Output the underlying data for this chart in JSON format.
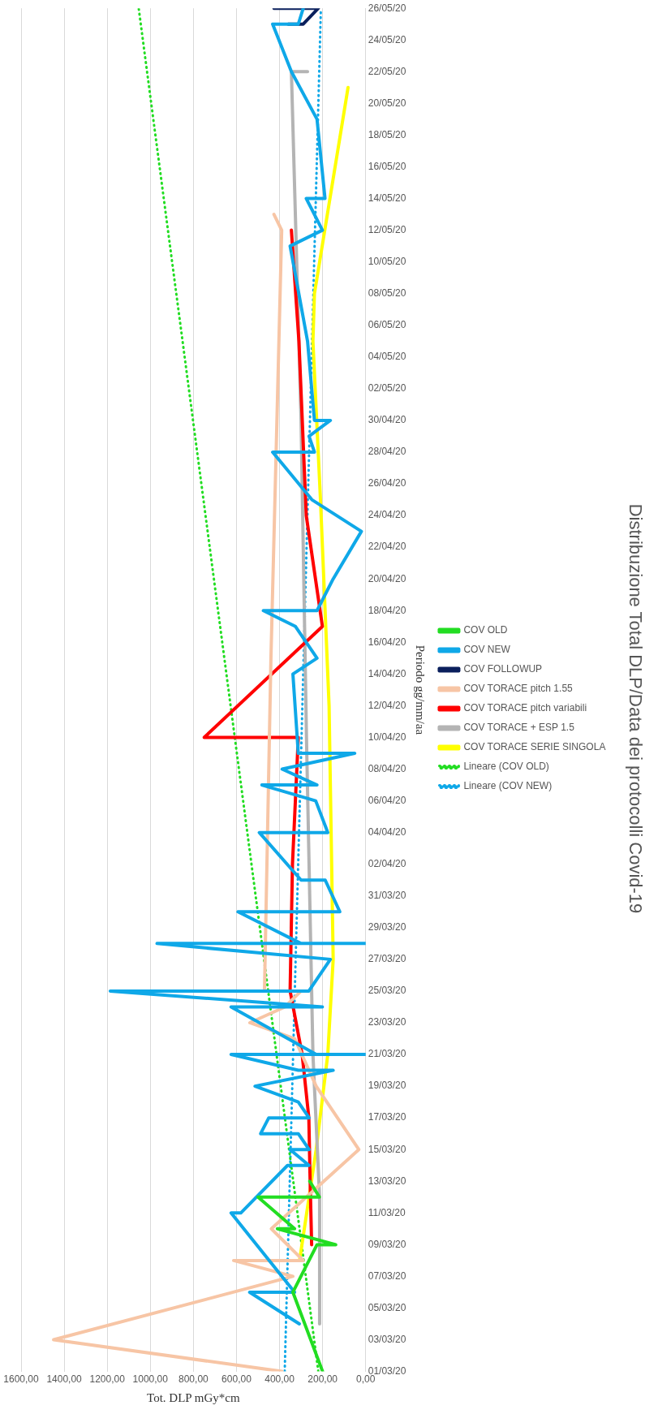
{
  "chart_data": {
    "type": "line",
    "orientation": "horizontal",
    "title": "Distribuzione Total DLP/Data dei protocolli Covid-19",
    "ylabel": "Periodo gg/mm/aa",
    "xlabel": "Tot. DLP mGy*cm",
    "legend": "right",
    "grid": "x",
    "marker": "none",
    "ylim": [
      "--03-01",
      "--05-26"
    ],
    "yticks": [
      {
        "value": "--03-01",
        "label": "01/03/20"
      },
      {
        "value": "--03-03",
        "label": "03/03/20"
      },
      {
        "value": "--03-05",
        "label": "05/03/20"
      },
      {
        "value": "--03-07",
        "label": "07/03/20"
      },
      {
        "value": "--03-09",
        "label": "09/03/20"
      },
      {
        "value": "--03-11",
        "label": "11/03/20"
      },
      {
        "value": "--03-13",
        "label": "13/03/20"
      },
      {
        "value": "--03-15",
        "label": "15/03/20"
      },
      {
        "value": "--03-17",
        "label": "17/03/20"
      },
      {
        "value": "--03-19",
        "label": "19/03/20"
      },
      {
        "value": "--03-21",
        "label": "21/03/20"
      },
      {
        "value": "--03-23",
        "label": "23/03/20"
      },
      {
        "value": "--03-25",
        "label": "25/03/20"
      },
      {
        "value": "--03-27",
        "label": "27/03/20"
      },
      {
        "value": "--03-29",
        "label": "29/03/20"
      },
      {
        "value": "--03-31",
        "label": "31/03/20"
      },
      {
        "value": "--04-02",
        "label": "02/04/20"
      },
      {
        "value": "--04-04",
        "label": "04/04/20"
      },
      {
        "value": "--04-06",
        "label": "06/04/20"
      },
      {
        "value": "--04-08",
        "label": "08/04/20"
      },
      {
        "value": "--04-10",
        "label": "10/04/20"
      },
      {
        "value": "--04-12",
        "label": "12/04/20"
      },
      {
        "value": "--04-14",
        "label": "14/04/20"
      },
      {
        "value": "--04-16",
        "label": "16/04/20"
      },
      {
        "value": "--04-18",
        "label": "18/04/20"
      },
      {
        "value": "--04-20",
        "label": "20/04/20"
      },
      {
        "value": "--04-22",
        "label": "22/04/20"
      },
      {
        "value": "--04-24",
        "label": "24/04/20"
      },
      {
        "value": "--04-26",
        "label": "26/04/20"
      },
      {
        "value": "--04-28",
        "label": "28/04/20"
      },
      {
        "value": "--04-30",
        "label": "30/04/20"
      },
      {
        "value": "--05-02",
        "label": "02/05/20"
      },
      {
        "value": "--05-04",
        "label": "04/05/20"
      },
      {
        "value": "--05-06",
        "label": "06/05/20"
      },
      {
        "value": "--05-08",
        "label": "08/05/20"
      },
      {
        "value": "--05-10",
        "label": "10/05/20"
      },
      {
        "value": "--05-12",
        "label": "12/05/20"
      },
      {
        "value": "--05-14",
        "label": "14/05/20"
      },
      {
        "value": "--05-16",
        "label": "16/05/20"
      },
      {
        "value": "--05-18",
        "label": "18/05/20"
      },
      {
        "value": "--05-20",
        "label": "20/05/20"
      },
      {
        "value": "--05-22",
        "label": "22/05/20"
      },
      {
        "value": "--05-24",
        "label": "24/05/20"
      },
      {
        "value": "--05-26",
        "label": "26/05/20"
      }
    ],
    "xlim": [
      1600,
      0
    ],
    "xticks": [
      {
        "value": 0,
        "label": "0,00"
      },
      {
        "value": 200,
        "label": "200,00"
      },
      {
        "value": 400,
        "label": "400,00"
      },
      {
        "value": 600,
        "label": "600,00"
      },
      {
        "value": 800,
        "label": "800,00"
      },
      {
        "value": 1000,
        "label": "1000,00"
      },
      {
        "value": 1200,
        "label": "1200,00"
      },
      {
        "value": 1400,
        "label": "1400,00"
      },
      {
        "value": 1600,
        "label": "1600,00"
      }
    ],
    "series": [
      {
        "name": "COV OLD",
        "color": "#22dd22",
        "line_style": "solid",
        "x": [
          "--03-01",
          "--03-06",
          "--03-09",
          "--03-09",
          "--03-10",
          "--03-10",
          "--03-12",
          "--03-12",
          "--03-13"
        ],
        "values": [
          200,
          338,
          226,
          139,
          410,
          330,
          500,
          215,
          260
        ]
      },
      {
        "name": "COV NEW",
        "color": "#0fa8e8",
        "line_style": "solid",
        "x": [
          "--03-04",
          "--03-06",
          "--03-06",
          "--03-11",
          "--03-11",
          "--03-14",
          "--03-14",
          "--03-15",
          "--03-15",
          "--03-16",
          "--03-16",
          "--03-17",
          "--03-17",
          "--03-18",
          "--03-19",
          "--03-20",
          "--03-20",
          "--03-21",
          "--03-21",
          "--03-21",
          "--03-24",
          "--03-24",
          "--03-25",
          "--03-25",
          "--03-27",
          "--03-28",
          "--03-28",
          "--03-28",
          "--03-30",
          "--03-30",
          "--04-01",
          "--04-01",
          "--04-04",
          "--04-04",
          "--04-06",
          "--04-07",
          "--04-07",
          "--04-08",
          "--04-09",
          "--04-09",
          "--04-14",
          "--04-15",
          "--04-17",
          "--04-18",
          "--04-18",
          "--04-20",
          "--04-23",
          "--04-25",
          "--04-28",
          "--04-28",
          "--04-29",
          "--04-30",
          "--04-30",
          "--05-05",
          "--05-11",
          "--05-12",
          "--05-14",
          "--05-14",
          "--05-19",
          "--05-22",
          "--05-25",
          "--05-25",
          "--05-26"
        ],
        "values": [
          308,
          539,
          330,
          625,
          580,
          363,
          263,
          351,
          263,
          313,
          488,
          450,
          263,
          313,
          514,
          151,
          313,
          625,
          1,
          230,
          625,
          201,
          1186,
          264,
          164,
          969,
          1,
          300,
          593,
          120,
          188,
          300,
          494,
          176,
          232,
          482,
          226,
          388,
          51,
          313,
          338,
          226,
          326,
          475,
          226,
          151,
          20,
          250,
          432,
          238,
          263,
          164,
          238,
          270,
          351,
          201,
          276,
          189,
          226,
          345,
          432,
          313,
          290
        ]
      },
      {
        "name": "COV FOLLOWUP",
        "color": "#0a1f5c",
        "line_style": "solid",
        "x": [
          "--05-25",
          "--05-25",
          "--05-26",
          "--05-26"
        ],
        "values": [
          360,
          290,
          220,
          426
        ]
      },
      {
        "name": "COV TORACE pitch 1.55",
        "color": "#f7c5a5",
        "line_style": "solid",
        "x": [
          "--03-01",
          "--03-03",
          "--03-07",
          "--03-08",
          "--03-08",
          "--03-10",
          "--03-15",
          "--03-19",
          "--03-22",
          "--03-23",
          "--03-24",
          "--03-25",
          "--03-25",
          "--04-15",
          "--05-12",
          "--05-13"
        ],
        "values": [
          388,
          1449,
          338,
          613,
          290,
          438,
          32,
          230,
          330,
          538,
          375,
          300,
          470,
          440,
          390,
          426
        ]
      },
      {
        "name": "COV TORACE pitch variabili",
        "color": "#ff0000",
        "line_style": "solid",
        "x": [
          "--03-09",
          "--03-13",
          "--03-17",
          "--03-21",
          "--03-25",
          "--04-02",
          "--04-10",
          "--04-10",
          "--04-17",
          "--04-24",
          "--05-05",
          "--05-12"
        ],
        "values": [
          251,
          258,
          264,
          295,
          351,
          340,
          313,
          750,
          201,
          276,
          310,
          345
        ]
      },
      {
        "name": "COV TORACE + ESP 1.5",
        "color": "#b4b4b4",
        "line_style": "solid",
        "x": [
          "--03-04",
          "--03-12",
          "--03-21",
          "--04-10",
          "--04-30",
          "--05-22",
          "--05-22"
        ],
        "values": [
          214,
          214,
          245,
          275,
          300,
          345,
          270
        ]
      },
      {
        "name": "COV TORACE SERIE SINGOLA",
        "color": "#ffff00",
        "line_style": "solid",
        "x": [
          "--03-08",
          "--03-15",
          "--03-21",
          "--03-27",
          "--04-12",
          "--04-25",
          "--05-05",
          "--05-08",
          "--05-21"
        ],
        "values": [
          307,
          230,
          176,
          151,
          170,
          210,
          245,
          238,
          82
        ]
      },
      {
        "name": "Lineare (COV OLD)",
        "color": "#22dd22",
        "line_style": "dotted",
        "x": [
          "--03-01",
          "--05-26"
        ],
        "values": [
          220,
          1054
        ]
      },
      {
        "name": "Lineare (COV NEW)",
        "color": "#0fa8e8",
        "line_style": "dotted",
        "x": [
          "--03-01",
          "--05-26"
        ],
        "values": [
          376,
          208
        ]
      }
    ]
  }
}
